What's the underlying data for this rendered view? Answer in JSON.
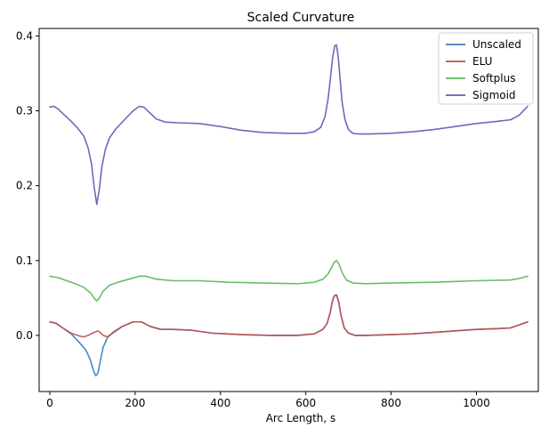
{
  "chart_data": {
    "type": "line",
    "title": "Scaled Curvature",
    "xlabel": "Arc Length, s",
    "ylabel": "",
    "xlim": [
      -25,
      1145
    ],
    "ylim": [
      -0.075,
      0.41
    ],
    "xticks": [
      0,
      200,
      400,
      600,
      800,
      1000
    ],
    "yticks": [
      0.0,
      0.1,
      0.2,
      0.3,
      0.4
    ],
    "xtick_labels": [
      "0",
      "200",
      "400",
      "600",
      "800",
      "1000"
    ],
    "ytick_labels": [
      "0.0",
      "0.1",
      "0.2",
      "0.3",
      "0.4"
    ],
    "grid": false,
    "legend_position": "top-right",
    "series": [
      {
        "name": "Unscaled",
        "color": "#3a7ebd",
        "x": [
          0,
          15,
          30,
          50,
          70,
          85,
          95,
          103,
          108,
          113,
          118,
          125,
          135,
          150,
          170,
          195,
          215,
          235,
          260,
          290,
          330,
          380,
          450,
          520,
          580,
          620,
          640,
          650,
          657,
          662,
          667,
          672,
          677,
          682,
          690,
          700,
          715,
          740,
          800,
          850,
          900,
          950,
          1000,
          1050,
          1080,
          1100,
          1120
        ],
        "y": [
          0.018,
          0.016,
          0.01,
          0.002,
          -0.01,
          -0.02,
          -0.033,
          -0.048,
          -0.054,
          -0.05,
          -0.035,
          -0.016,
          -0.003,
          0.005,
          0.012,
          0.018,
          0.018,
          0.012,
          0.008,
          0.008,
          0.007,
          0.003,
          0.001,
          0.0,
          0.0,
          0.002,
          0.008,
          0.016,
          0.03,
          0.045,
          0.053,
          0.054,
          0.045,
          0.028,
          0.01,
          0.003,
          0.0,
          0.0,
          0.001,
          0.002,
          0.004,
          0.006,
          0.008,
          0.009,
          0.01,
          0.014,
          0.018
        ]
      },
      {
        "name": "ELU",
        "color": "#c0504d",
        "x": [
          0,
          15,
          30,
          50,
          70,
          80,
          90,
          100,
          108,
          113,
          118,
          125,
          135,
          150,
          170,
          195,
          215,
          235,
          260,
          290,
          330,
          380,
          450,
          520,
          580,
          620,
          640,
          650,
          657,
          662,
          667,
          672,
          677,
          682,
          690,
          700,
          715,
          740,
          800,
          850,
          900,
          950,
          1000,
          1050,
          1080,
          1100,
          1120
        ],
        "y": [
          0.018,
          0.016,
          0.01,
          0.003,
          -0.001,
          -0.002,
          0.0,
          0.003,
          0.005,
          0.006,
          0.004,
          0.0,
          -0.002,
          0.004,
          0.012,
          0.018,
          0.018,
          0.012,
          0.008,
          0.008,
          0.007,
          0.003,
          0.001,
          0.0,
          0.0,
          0.002,
          0.008,
          0.016,
          0.03,
          0.045,
          0.053,
          0.054,
          0.045,
          0.028,
          0.01,
          0.003,
          0.0,
          0.0,
          0.001,
          0.002,
          0.004,
          0.006,
          0.008,
          0.009,
          0.01,
          0.014,
          0.018
        ]
      },
      {
        "name": "Softplus",
        "color": "#5cb85c",
        "x": [
          0,
          20,
          40,
          60,
          80,
          95,
          105,
          110,
          115,
          125,
          140,
          160,
          185,
          210,
          225,
          250,
          290,
          350,
          420,
          500,
          580,
          620,
          640,
          652,
          660,
          666,
          672,
          678,
          685,
          695,
          710,
          740,
          800,
          900,
          1000,
          1080,
          1100,
          1120
        ],
        "y": [
          0.079,
          0.077,
          0.073,
          0.069,
          0.064,
          0.057,
          0.049,
          0.046,
          0.049,
          0.059,
          0.067,
          0.071,
          0.075,
          0.079,
          0.079,
          0.075,
          0.073,
          0.073,
          0.071,
          0.07,
          0.069,
          0.071,
          0.075,
          0.082,
          0.09,
          0.097,
          0.1,
          0.095,
          0.084,
          0.074,
          0.07,
          0.069,
          0.07,
          0.071,
          0.073,
          0.074,
          0.076,
          0.079
        ]
      },
      {
        "name": "Sigmoid",
        "color": "#5b5eb7",
        "x": [
          0,
          10,
          20,
          35,
          50,
          65,
          80,
          90,
          98,
          104,
          110,
          116,
          122,
          130,
          140,
          155,
          175,
          195,
          210,
          220,
          235,
          250,
          270,
          300,
          350,
          400,
          450,
          500,
          560,
          600,
          620,
          635,
          645,
          652,
          658,
          663,
          668,
          672,
          676,
          680,
          685,
          692,
          700,
          710,
          725,
          750,
          800,
          850,
          900,
          950,
          1000,
          1050,
          1080,
          1100,
          1120
        ],
        "y": [
          0.305,
          0.306,
          0.302,
          0.294,
          0.286,
          0.277,
          0.266,
          0.25,
          0.228,
          0.198,
          0.175,
          0.195,
          0.225,
          0.248,
          0.264,
          0.276,
          0.288,
          0.3,
          0.306,
          0.305,
          0.297,
          0.289,
          0.285,
          0.284,
          0.283,
          0.279,
          0.274,
          0.271,
          0.27,
          0.27,
          0.272,
          0.278,
          0.292,
          0.315,
          0.345,
          0.372,
          0.387,
          0.388,
          0.372,
          0.345,
          0.312,
          0.288,
          0.275,
          0.27,
          0.269,
          0.269,
          0.27,
          0.272,
          0.275,
          0.279,
          0.283,
          0.286,
          0.288,
          0.294,
          0.306
        ]
      }
    ]
  }
}
